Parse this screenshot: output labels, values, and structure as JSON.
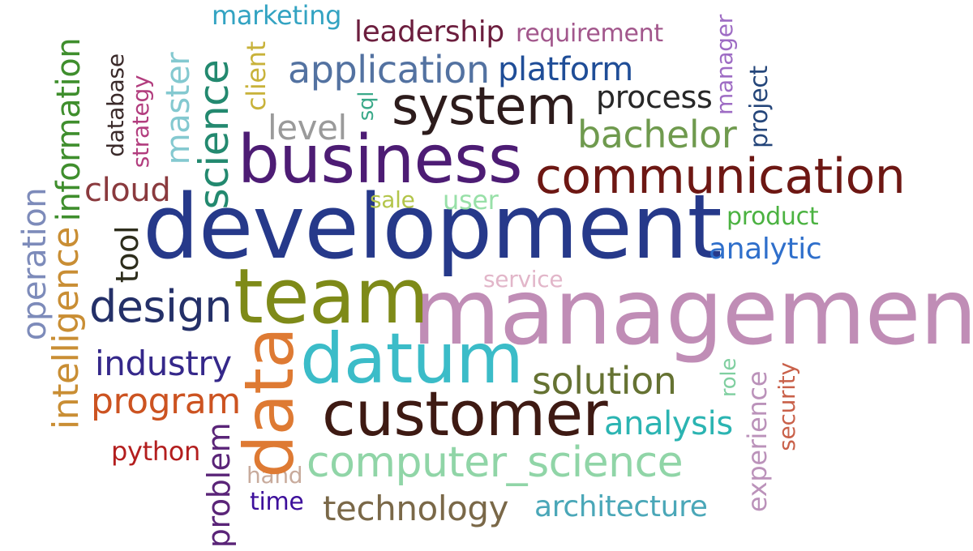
{
  "words": [
    {
      "id": "management",
      "text": "management",
      "color": "#c08db6"
    },
    {
      "id": "development",
      "text": "development",
      "color": "#26398a"
    },
    {
      "id": "business",
      "text": "business",
      "color": "#4d1c74"
    },
    {
      "id": "team",
      "text": "team",
      "color": "#7e8a18"
    },
    {
      "id": "customer",
      "text": "customer",
      "color": "#3e1a13"
    },
    {
      "id": "datum",
      "text": "datum",
      "color": "#3bbcc8"
    },
    {
      "id": "communication",
      "text": "communication",
      "color": "#6d1713"
    },
    {
      "id": "system",
      "text": "system",
      "color": "#2d1c1c"
    },
    {
      "id": "data",
      "text": "data",
      "color": "#de7a33"
    },
    {
      "id": "computer-science",
      "text": "computer_science",
      "color": "#90d5a7"
    },
    {
      "id": "design",
      "text": "design",
      "color": "#243068"
    },
    {
      "id": "application",
      "text": "application",
      "color": "#5372a1"
    },
    {
      "id": "bachelor",
      "text": "bachelor",
      "color": "#6f9a4e"
    },
    {
      "id": "science",
      "text": "science",
      "color": "#23896f"
    },
    {
      "id": "solution",
      "text": "solution",
      "color": "#657232"
    },
    {
      "id": "program",
      "text": "program",
      "color": "#cc5321"
    },
    {
      "id": "technology",
      "text": "technology",
      "color": "#7a6848"
    },
    {
      "id": "industry",
      "text": "industry",
      "color": "#35288a"
    },
    {
      "id": "analysis",
      "text": "analysis",
      "color": "#2bb4b2"
    },
    {
      "id": "platform",
      "text": "platform",
      "color": "#1f4d97"
    },
    {
      "id": "process",
      "text": "process",
      "color": "#272727"
    },
    {
      "id": "level",
      "text": "level",
      "color": "#9a9a9a"
    },
    {
      "id": "leadership",
      "text": "leadership",
      "color": "#6c1e3e"
    },
    {
      "id": "information",
      "text": "information",
      "color": "#3f8e2d"
    },
    {
      "id": "intelligence",
      "text": "intelligence",
      "color": "#c98e34"
    },
    {
      "id": "operation",
      "text": "operation",
      "color": "#7d8bba"
    },
    {
      "id": "cloud",
      "text": "cloud",
      "color": "#8a3a3e"
    },
    {
      "id": "architecture",
      "text": "architecture",
      "color": "#4aa7b8"
    },
    {
      "id": "analytic",
      "text": "analytic",
      "color": "#2f6fcb"
    },
    {
      "id": "problem",
      "text": "problem",
      "color": "#5a2478"
    },
    {
      "id": "master",
      "text": "master",
      "color": "#84c9d0"
    },
    {
      "id": "experience",
      "text": "experience",
      "color": "#bb92ba"
    },
    {
      "id": "requirement",
      "text": "requirement",
      "color": "#a2578c"
    },
    {
      "id": "marketing",
      "text": "marketing",
      "color": "#33a3c2"
    },
    {
      "id": "tool",
      "text": "tool",
      "color": "#2d2d1c"
    },
    {
      "id": "client",
      "text": "client",
      "color": "#c8b23a"
    },
    {
      "id": "manager",
      "text": "manager",
      "color": "#9e6cc4"
    },
    {
      "id": "project",
      "text": "project",
      "color": "#25467a"
    },
    {
      "id": "security",
      "text": "security",
      "color": "#c9614a"
    },
    {
      "id": "python",
      "text": "python",
      "color": "#b31e1e"
    },
    {
      "id": "product",
      "text": "product",
      "color": "#4bb241"
    },
    {
      "id": "user",
      "text": "user",
      "color": "#98e0a8"
    },
    {
      "id": "role",
      "text": "role",
      "color": "#7fcfa0"
    },
    {
      "id": "service",
      "text": "service",
      "color": "#e2b6c9"
    },
    {
      "id": "database",
      "text": "database",
      "color": "#3a2a2a"
    },
    {
      "id": "strategy",
      "text": "strategy",
      "color": "#b23d7e"
    },
    {
      "id": "sql",
      "text": "sql",
      "color": "#3aa989"
    },
    {
      "id": "sale",
      "text": "sale",
      "color": "#b3c54a"
    },
    {
      "id": "hand",
      "text": "hand",
      "color": "#c8ab9c"
    },
    {
      "id": "time",
      "text": "time",
      "color": "#3d0f9b"
    }
  ]
}
